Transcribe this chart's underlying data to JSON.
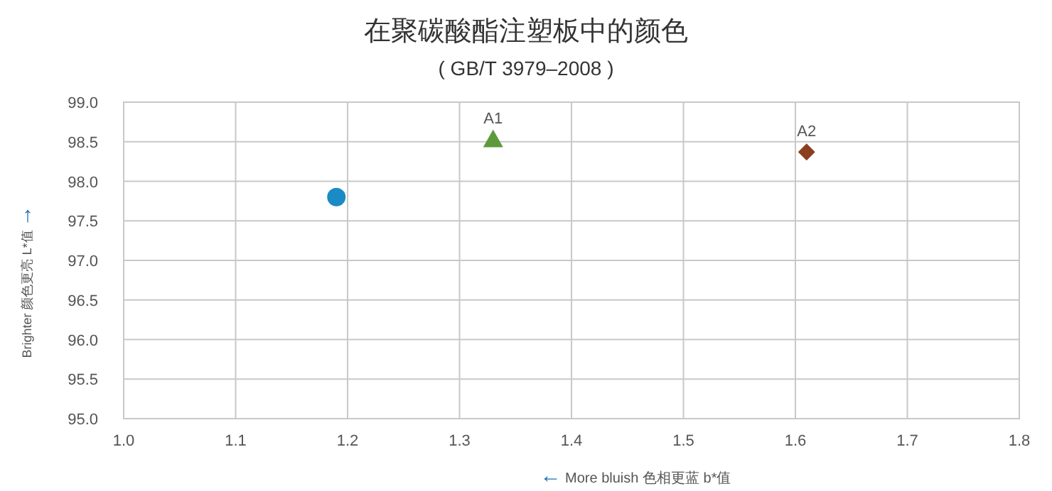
{
  "chart_data": {
    "type": "scatter",
    "title": "在聚碳酸酯注塑板中的颜色",
    "subtitle": "( GB/T 3979–2008 )",
    "xlabel": "← More bluish 色相更蓝  b*值",
    "ylabel": "Brighter 颜色更亮  L*值 →",
    "xlim": [
      1.0,
      1.8
    ],
    "ylim": [
      95.0,
      99.0
    ],
    "xticks": [
      {
        "value": 1.0,
        "label": "1.0"
      },
      {
        "value": 1.1,
        "label": "1.1"
      },
      {
        "value": 1.2,
        "label": "1.2"
      },
      {
        "value": 1.3,
        "label": "1.3"
      },
      {
        "value": 1.4,
        "label": "1.4"
      },
      {
        "value": 1.5,
        "label": "1.5"
      },
      {
        "value": 1.6,
        "label": "1.6"
      },
      {
        "value": 1.7,
        "label": "1.7"
      },
      {
        "value": 1.8,
        "label": "1.8"
      }
    ],
    "yticks": [
      {
        "value": 95.0,
        "label": "95.0"
      },
      {
        "value": 95.5,
        "label": "95.5"
      },
      {
        "value": 96.0,
        "label": "96.0"
      },
      {
        "value": 96.5,
        "label": "96.5"
      },
      {
        "value": 97.0,
        "label": "97.0"
      },
      {
        "value": 97.5,
        "label": "97.5"
      },
      {
        "value": 98.0,
        "label": "98.0"
      },
      {
        "value": 98.5,
        "label": "98.5"
      },
      {
        "value": 99.0,
        "label": "99.0"
      }
    ],
    "grid": true,
    "series": [
      {
        "color": "#1a8bc4",
        "marker": "circle",
        "x": [
          1.19
        ],
        "values": [
          97.8
        ]
      },
      {
        "name": "A1",
        "color": "#5e9a3c",
        "marker": "triangle",
        "x": [
          1.33
        ],
        "values": [
          98.53
        ]
      },
      {
        "name": "A2",
        "color": "#8b3f1e",
        "marker": "diamond",
        "x": [
          1.61
        ],
        "values": [
          98.37
        ]
      }
    ]
  }
}
